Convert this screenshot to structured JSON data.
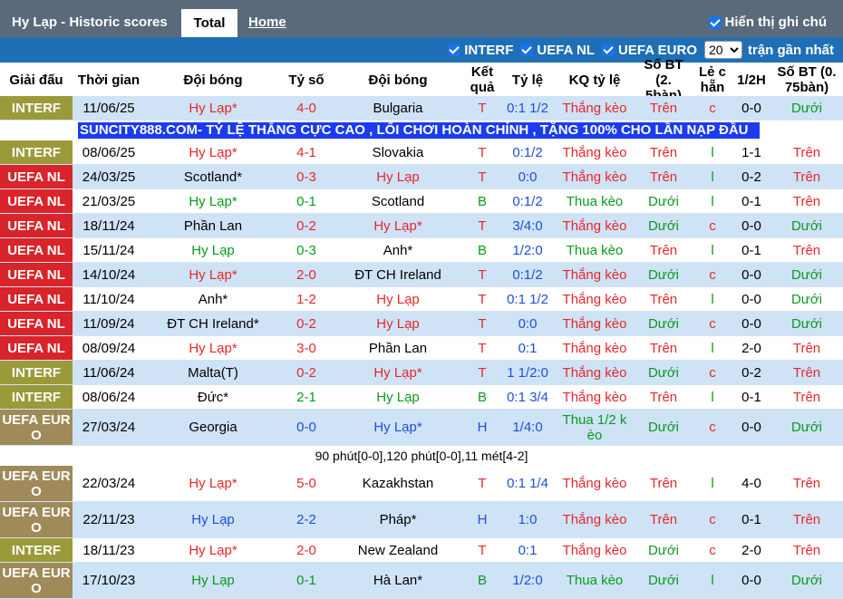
{
  "header": {
    "title": "Hy Lạp - Historic scores",
    "tab_total": "Total",
    "tab_home": "Home",
    "show_label": "Hiển thị ghi chú"
  },
  "filters": {
    "items": [
      "INTERF",
      "UEFA NL",
      "UEFA EURO"
    ],
    "count_value": "20",
    "count_label": "trận gần nhất"
  },
  "columns": [
    "Giải đấu",
    "Thời gian",
    "Đội bóng",
    "Tỷ số",
    "Đội bóng",
    "Kết quả",
    "Tỷ lệ",
    "KQ tỷ lệ",
    "Số BT (2. 5bàn)",
    "Lẻ c hẵn",
    "1/2H",
    "Số BT (0. 75bàn)"
  ],
  "colors": {
    "interf": "#9a9a3a",
    "uefa_nl": "#d8242a",
    "uefa_euro": "#a08a5a",
    "red": "#e8262a",
    "green": "#0a9a1e",
    "blue": "#1e4fd8"
  },
  "banner": "SUNCITY888.COM- TỶ LỆ THẮNG CỰC CAO , LỐI CHƠI HOÀN CHỈNH , TẶNG 100% CHO LẦN NẠP ĐẦU",
  "note": "90 phút[0-0],120 phút[0-0],11 mét[4-2]",
  "rows": [
    {
      "league": "INTERF",
      "date": "11/06/25",
      "home": "Hy Lạp*",
      "score": "4-0",
      "away": "Bulgaria",
      "res": "T",
      "odds": "0:1 1/2",
      "kq": "Thắng kèo",
      "bt25": "Trên",
      "lc": "c",
      "half": "0-0",
      "bt075": "Dưới"
    },
    {
      "league": "INTERF",
      "date": "08/06/25",
      "home": "Hy Lạp*",
      "score": "4-1",
      "away": "Slovakia",
      "res": "T",
      "odds": "0:1/2",
      "kq": "Thắng kèo",
      "bt25": "Trên",
      "lc": "l",
      "half": "1-1",
      "bt075": "Trên"
    },
    {
      "league": "UEFA NL",
      "date": "24/03/25",
      "home": "Scotland*",
      "score": "0-3",
      "away": "Hy Lạp",
      "res": "T",
      "odds": "0:0",
      "kq": "Thắng kèo",
      "bt25": "Trên",
      "lc": "l",
      "half": "0-2",
      "bt075": "Trên"
    },
    {
      "league": "UEFA NL",
      "date": "21/03/25",
      "home": "Hy Lạp*",
      "score": "0-1",
      "away": "Scotland",
      "res": "B",
      "odds": "0:1/2",
      "kq": "Thua kèo",
      "bt25": "Dưới",
      "lc": "l",
      "half": "0-1",
      "bt075": "Trên"
    },
    {
      "league": "UEFA NL",
      "date": "18/11/24",
      "home": "Phần Lan",
      "score": "0-2",
      "away": "Hy Lạp*",
      "res": "T",
      "odds": "3/4:0",
      "kq": "Thắng kèo",
      "bt25": "Dưới",
      "lc": "c",
      "half": "0-0",
      "bt075": "Dưới"
    },
    {
      "league": "UEFA NL",
      "date": "15/11/24",
      "home": "Hy Lạp",
      "score": "0-3",
      "away": "Anh*",
      "res": "B",
      "odds": "1/2:0",
      "kq": "Thua kèo",
      "bt25": "Trên",
      "lc": "l",
      "half": "0-1",
      "bt075": "Trên"
    },
    {
      "league": "UEFA NL",
      "date": "14/10/24",
      "home": "Hy Lạp*",
      "score": "2-0",
      "away": "ĐT CH Ireland",
      "res": "T",
      "odds": "0:1/2",
      "kq": "Thắng kèo",
      "bt25": "Dưới",
      "lc": "c",
      "half": "0-0",
      "bt075": "Dưới"
    },
    {
      "league": "UEFA NL",
      "date": "11/10/24",
      "home": "Anh*",
      "score": "1-2",
      "away": "Hy Lạp",
      "res": "T",
      "odds": "0:1 1/2",
      "kq": "Thắng kèo",
      "bt25": "Trên",
      "lc": "l",
      "half": "0-0",
      "bt075": "Dưới"
    },
    {
      "league": "UEFA NL",
      "date": "11/09/24",
      "home": "ĐT CH Ireland*",
      "score": "0-2",
      "away": "Hy Lạp",
      "res": "T",
      "odds": "0:0",
      "kq": "Thắng kèo",
      "bt25": "Dưới",
      "lc": "c",
      "half": "0-0",
      "bt075": "Dưới"
    },
    {
      "league": "UEFA NL",
      "date": "08/09/24",
      "home": "Hy Lạp*",
      "score": "3-0",
      "away": "Phần Lan",
      "res": "T",
      "odds": "0:1",
      "kq": "Thắng kèo",
      "bt25": "Trên",
      "lc": "l",
      "half": "2-0",
      "bt075": "Trên"
    },
    {
      "league": "INTERF",
      "date": "11/06/24",
      "home": "Malta(T)",
      "score": "0-2",
      "away": "Hy Lạp*",
      "res": "T",
      "odds": "1 1/2:0",
      "kq": "Thắng kèo",
      "bt25": "Dưới",
      "lc": "c",
      "half": "0-2",
      "bt075": "Trên"
    },
    {
      "league": "INTERF",
      "date": "08/06/24",
      "home": "Đức*",
      "score": "2-1",
      "away": "Hy Lạp",
      "res": "B",
      "odds": "0:1 3/4",
      "kq": "Thắng kèo",
      "bt25": "Trên",
      "lc": "l",
      "half": "0-1",
      "bt075": "Trên"
    },
    {
      "league": "UEFA EURO",
      "date": "27/03/24",
      "home": "Georgia",
      "score": "0-0",
      "away": "Hy Lạp*",
      "res": "H",
      "odds": "1/4:0",
      "kq": "Thua 1/2 kèo",
      "bt25": "Dưới",
      "lc": "c",
      "half": "0-0",
      "bt075": "Dưới"
    },
    {
      "league": "UEFA EURO",
      "date": "22/03/24",
      "home": "Hy Lạp*",
      "score": "5-0",
      "away": "Kazakhstan",
      "res": "T",
      "odds": "0:1 1/4",
      "kq": "Thắng kèo",
      "bt25": "Trên",
      "lc": "l",
      "half": "4-0",
      "bt075": "Trên"
    },
    {
      "league": "UEFA EURO",
      "date": "22/11/23",
      "home": "Hy Lạp",
      "score": "2-2",
      "away": "Pháp*",
      "res": "H",
      "odds": "1:0",
      "kq": "Thắng kèo",
      "bt25": "Trên",
      "lc": "c",
      "half": "0-1",
      "bt075": "Trên"
    },
    {
      "league": "INTERF",
      "date": "18/11/23",
      "home": "Hy Lạp*",
      "score": "2-0",
      "away": "New Zealand",
      "res": "T",
      "odds": "0:1",
      "kq": "Thắng kèo",
      "bt25": "Dưới",
      "lc": "c",
      "half": "2-0",
      "bt075": "Trên"
    },
    {
      "league": "UEFA EURO",
      "date": "17/10/23",
      "home": "Hy Lạp",
      "score": "0-1",
      "away": "Hà Lan*",
      "res": "B",
      "odds": "1/2:0",
      "kq": "Thua kèo",
      "bt25": "Dưới",
      "lc": "l",
      "half": "0-0",
      "bt075": "Dưới"
    }
  ]
}
